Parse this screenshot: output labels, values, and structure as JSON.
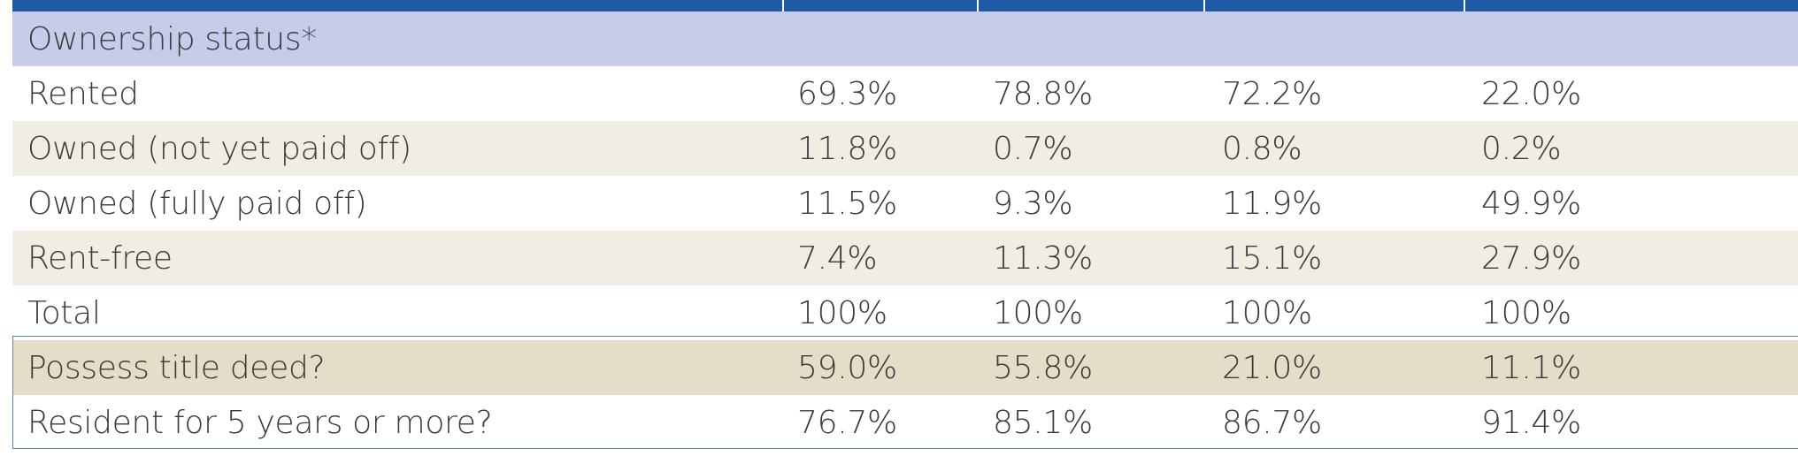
{
  "section_header": "Ownership status*",
  "rows": [
    {
      "label": "Rented",
      "values": [
        "69.3%",
        "78.8%",
        "72.2%",
        "22.0%"
      ]
    },
    {
      "label": "Owned (not yet paid off)",
      "values": [
        "11.8%",
        "0.7%",
        "0.8%",
        "0.2%"
      ]
    },
    {
      "label": "Owned (fully paid off)",
      "values": [
        "11.5%",
        "9.3%",
        "11.9%",
        "49.9%"
      ]
    },
    {
      "label": "Rent-free",
      "values": [
        "7.4%",
        "11.3%",
        "15.1%",
        "27.9%"
      ]
    },
    {
      "label": "Total",
      "values": [
        "100%",
        "100%",
        "100%",
        "100%"
      ]
    }
  ],
  "extra_rows": [
    {
      "label": "Possess title deed?",
      "values": [
        "59.0%",
        "55.8%",
        "21.0%",
        "11.1%"
      ]
    },
    {
      "label": "Resident for 5 years or more?",
      "values": [
        "76.7%",
        "85.1%",
        "86.7%",
        "91.4%"
      ]
    }
  ],
  "colors": {
    "header_blue": "#1f5aa6",
    "section_lavender": "#c6cce9",
    "stripe_beige": "#f1ede3",
    "highlight_tan": "#e6ddc9",
    "frame_blue": "#5a84ad"
  }
}
